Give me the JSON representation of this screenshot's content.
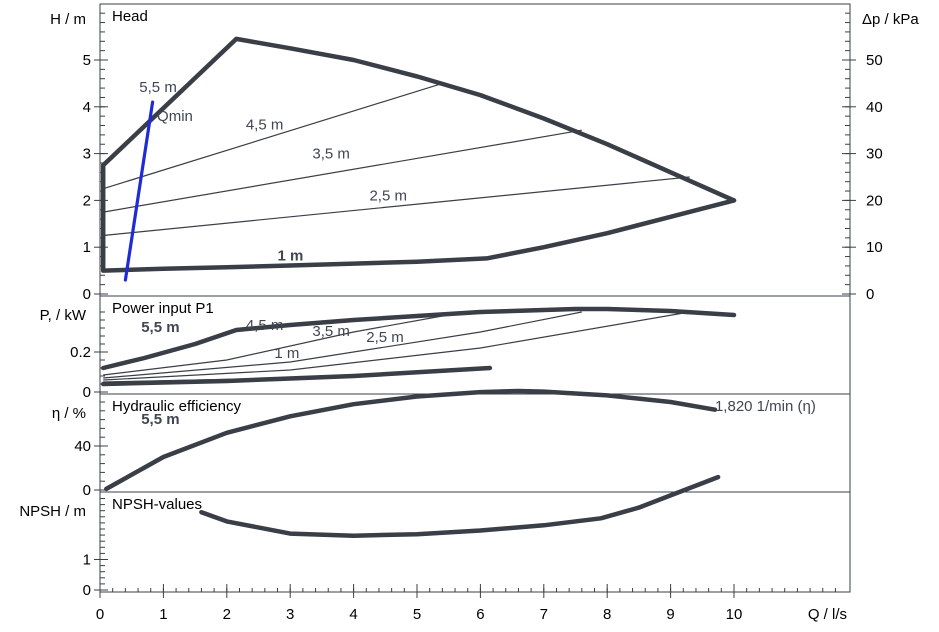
{
  "chart_data": {
    "type": "line",
    "x_axis": {
      "label": "Q / l/s",
      "range": [
        0,
        11
      ],
      "ticks": [
        "0",
        "1",
        "2",
        "3",
        "4",
        "5",
        "6",
        "7",
        "8",
        "9",
        "10"
      ]
    },
    "panels": [
      {
        "id": "head",
        "title": "Head",
        "ylabel_left": "H / m",
        "ylabel_right": "Δp / kPa",
        "ylim": [
          0,
          6.0
        ],
        "yticks": [
          "0",
          "1",
          "2",
          "3",
          "4",
          "5"
        ],
        "yticks_right": [
          "0",
          "10",
          "20",
          "30",
          "40",
          "50"
        ],
        "series": [
          {
            "name": "5,5 m",
            "style": "heavy",
            "x": [
              0.05,
              2.15,
              3,
              4,
              5,
              6,
              7,
              8,
              9,
              10
            ],
            "y": [
              2.75,
              5.45,
              5.25,
              5.0,
              4.65,
              4.25,
              3.75,
              3.2,
              2.6,
              2.0
            ]
          },
          {
            "name": "min",
            "style": "heavy",
            "x": [
              0.05,
              0.05,
              1,
              2,
              3,
              4,
              5,
              6.1,
              7,
              8,
              9,
              10
            ],
            "y": [
              2.75,
              0.5,
              0.54,
              0.57,
              0.61,
              0.65,
              0.69,
              0.76,
              1.0,
              1.3,
              1.65,
              2.0
            ]
          },
          {
            "name": "4,5 m",
            "style": "thin",
            "x": [
              0.05,
              5.4
            ],
            "y": [
              2.25,
              4.5
            ]
          },
          {
            "name": "3,5 m",
            "style": "thin",
            "x": [
              0.05,
              7.6
            ],
            "y": [
              1.75,
              3.5
            ]
          },
          {
            "name": "2,5 m",
            "style": "thin",
            "x": [
              0.05,
              9.3
            ],
            "y": [
              1.25,
              2.5
            ]
          },
          {
            "name": "Qmin",
            "style": "qmin",
            "x": [
              0.4,
              0.83
            ],
            "y": [
              0.3,
              4.1
            ]
          }
        ],
        "labels": [
          {
            "text": "5,5 m",
            "x": 0.62,
            "y": 4.32,
            "style": "plain"
          },
          {
            "text": "Qmin",
            "x": 0.9,
            "y": 3.7,
            "style": "plain"
          },
          {
            "text": "4,5 m",
            "x": 2.3,
            "y": 3.52,
            "style": "plain"
          },
          {
            "text": "3,5 m",
            "x": 3.35,
            "y": 2.9,
            "style": "plain"
          },
          {
            "text": "2,5 m",
            "x": 4.25,
            "y": 2.0,
            "style": "plain"
          },
          {
            "text": "1 m",
            "x": 2.8,
            "y": 0.72,
            "style": "bold"
          }
        ]
      },
      {
        "id": "power",
        "title": "Power input P1",
        "ylabel_left": "P, / kW",
        "ylim": [
          0,
          0.42
        ],
        "yticks": [
          "0",
          "0.2"
        ],
        "series": [
          {
            "name": "5,5 m",
            "style": "heavy",
            "x": [
              0.05,
              0.7,
              1.5,
              2.15,
              3,
              4,
              5,
              6,
              7,
              7.5,
              8,
              9,
              10
            ],
            "y": [
              0.12,
              0.17,
              0.24,
              0.31,
              0.335,
              0.36,
              0.38,
              0.4,
              0.41,
              0.415,
              0.415,
              0.405,
              0.385
            ]
          },
          {
            "name": "min",
            "style": "heavy",
            "x": [
              0.05,
              2,
              4,
              6.15
            ],
            "y": [
              0.04,
              0.055,
              0.08,
              0.12
            ]
          },
          {
            "name": "4,5 m",
            "style": "thin",
            "x": [
              0.05,
              2,
              4,
              5.4
            ],
            "y": [
              0.085,
              0.16,
              0.3,
              0.38
            ]
          },
          {
            "name": "3,5 m",
            "style": "thin",
            "x": [
              0.05,
              3,
              6,
              7.6
            ],
            "y": [
              0.07,
              0.15,
              0.3,
              0.4
            ]
          },
          {
            "name": "2,5 m",
            "style": "thin",
            "x": [
              0.05,
              3,
              6,
              9.3
            ],
            "y": [
              0.06,
              0.11,
              0.22,
              0.4
            ]
          },
          {
            "name": "1 m",
            "style": "thin",
            "x": [
              0.05,
              3,
              6.15
            ],
            "y": [
              0.05,
              0.07,
              0.12
            ]
          }
        ],
        "labels": [
          {
            "text": "5,5 m",
            "x": 0.65,
            "y": 0.3,
            "style": "bold"
          },
          {
            "text": "4,5 m",
            "x": 2.3,
            "y": 0.31,
            "style": "plain"
          },
          {
            "text": "3,5 m",
            "x": 3.35,
            "y": 0.28,
            "style": "plain"
          },
          {
            "text": "2,5 m",
            "x": 4.2,
            "y": 0.25,
            "style": "plain"
          },
          {
            "text": "1 m",
            "x": 2.75,
            "y": 0.17,
            "style": "plain"
          }
        ]
      },
      {
        "id": "efficiency",
        "title": "Hydraulic efficiency",
        "ylabel_left": "η / %",
        "ylim": [
          0,
          100
        ],
        "yticks": [
          "0",
          "40"
        ],
        "series": [
          {
            "name": "η",
            "style": "heavy",
            "x": [
              0.1,
              1,
              2,
              3,
              4,
              5,
              6,
              6.6,
              7,
              8,
              9,
              9.7
            ],
            "y": [
              1,
              30,
              52,
              67,
              78,
              85,
              89,
              90,
              89.5,
              86,
              80,
              73
            ]
          }
        ],
        "labels": [
          {
            "text": "5,5 m",
            "x": 0.65,
            "y": 60,
            "style": "bold"
          },
          {
            "text": "1,820 1/min (η)",
            "x": 9.7,
            "y": 72,
            "style": "plain"
          }
        ]
      },
      {
        "id": "npsh",
        "title": "NPSH-values",
        "ylabel_left": "NPSH / m",
        "ylim": [
          0,
          4.2
        ],
        "yticks": [
          "0",
          "1"
        ],
        "series": [
          {
            "name": "NPSH",
            "style": "heavy",
            "x": [
              1.6,
              2,
              3,
              4,
              5,
              6,
              7,
              7.9,
              8.5,
              9,
              9.75
            ],
            "y": [
              2.55,
              2.25,
              1.85,
              1.78,
              1.83,
              1.95,
              2.12,
              2.35,
              2.7,
              3.1,
              3.7
            ]
          }
        ],
        "labels": []
      }
    ]
  }
}
